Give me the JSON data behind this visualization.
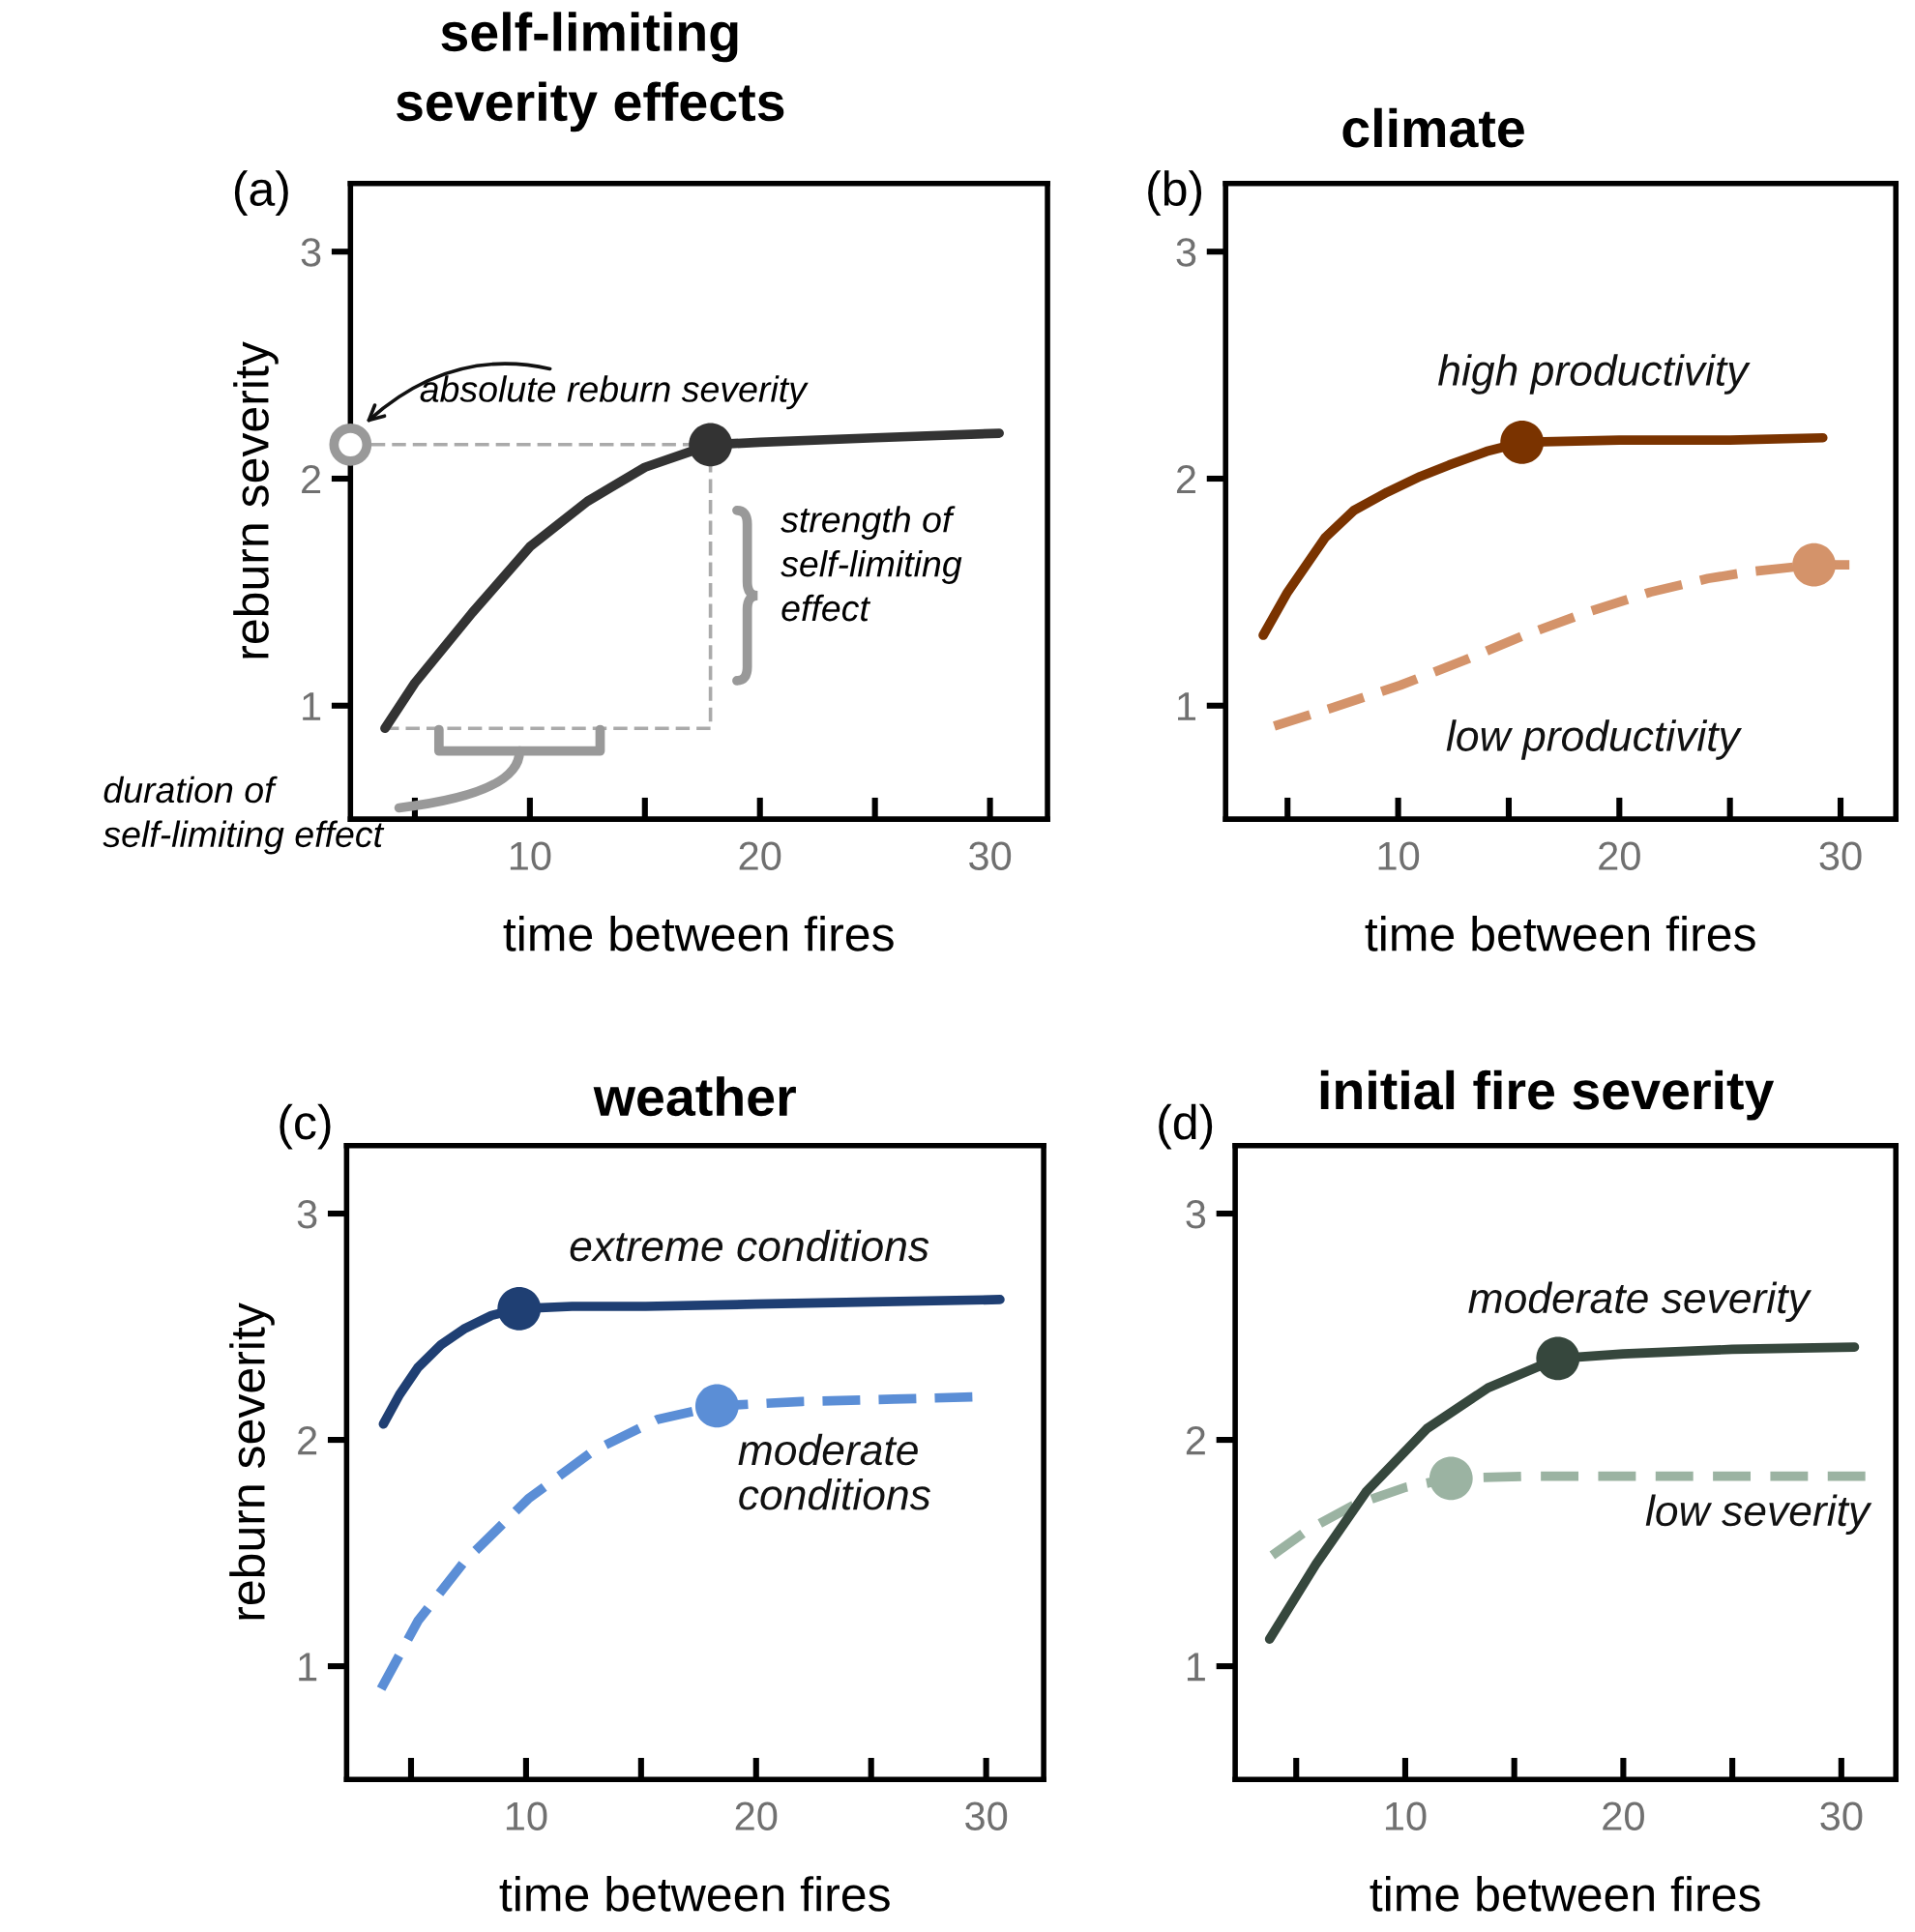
{
  "chart_data": [
    {
      "type": "line",
      "title": "self-limiting\nseverity effects",
      "xlabel": "time between fires",
      "ylabel": "reburn severity",
      "xlim": [
        2.2,
        32.5
      ],
      "ylim": [
        0.5,
        3.3
      ],
      "xticks": [
        {
          "value": 5,
          "label": null
        },
        10,
        {
          "value": 15,
          "label": null
        },
        20,
        {
          "value": 25,
          "label": null
        },
        30
      ],
      "yticks": [
        1,
        2,
        3
      ],
      "series": [
        {
          "type": "line",
          "color": "#aaaaaa",
          "line_style": "dashed",
          "x": [
            2.2,
            17.85,
            17.85,
            3.7
          ],
          "values": [
            2.15,
            2.15,
            0.9,
            0.9
          ]
        },
        {
          "type": "line",
          "color": "#333333",
          "line_style": "solid",
          "x": [
            3.7,
            5,
            7.5,
            10,
            12.5,
            15,
            17.85,
            20,
            25,
            30.4
          ],
          "values": [
            0.9,
            1.1,
            1.41,
            1.7,
            1.9,
            2.05,
            2.15,
            2.16,
            2.18,
            2.2
          ]
        },
        {
          "type": "scatter",
          "marker": "circle",
          "color": "#333333",
          "x": [
            17.85
          ],
          "values": [
            2.15
          ]
        },
        {
          "type": "scatter",
          "marker": "circle",
          "color": "#999999",
          "x": [
            2.2
          ],
          "values": [
            2.15
          ]
        }
      ],
      "annotations": [
        "(a)",
        {
          "text": "absolute reburn severity",
          "x": 2.2,
          "y": 2.15
        },
        "strength of\nself-limiting\neffect",
        "duration of\nself-limiting effect"
      ]
    },
    {
      "type": "line",
      "title": "climate",
      "xlabel": "time between fires",
      "xlim": [
        2.2,
        32.5
      ],
      "ylim": [
        0.5,
        3.3
      ],
      "xticks": [
        {
          "value": 5,
          "label": null
        },
        10,
        {
          "value": 15,
          "label": null
        },
        20,
        {
          "value": 25,
          "label": null
        },
        30
      ],
      "yticks": [
        1,
        2,
        3
      ],
      "series": [
        {
          "type": "line",
          "name": "high productivity",
          "color": "#7a3300",
          "line_style": "solid",
          "x": [
            3.9,
            5,
            6.7,
            8,
            9.5,
            11,
            12.3,
            14,
            15.6,
            20,
            25,
            29.2
          ],
          "values": [
            1.31,
            1.5,
            1.74,
            1.86,
            1.94,
            2.01,
            2.06,
            2.12,
            2.16,
            2.17,
            2.17,
            2.18
          ]
        },
        {
          "type": "scatter",
          "marker": "circle",
          "color": "#7a3300",
          "x": [
            15.6
          ],
          "values": [
            2.16
          ]
        },
        {
          "type": "line",
          "name": "low productivity",
          "color": "#d4936a",
          "line_style": "dashed",
          "x": [
            4.4,
            7,
            10.1,
            13,
            15.7,
            18.5,
            21.4,
            24,
            25.9,
            28.8,
            30.4
          ],
          "values": [
            0.91,
            0.99,
            1.09,
            1.2,
            1.31,
            1.41,
            1.5,
            1.56,
            1.59,
            1.62,
            1.62
          ]
        },
        {
          "type": "scatter",
          "marker": "circle",
          "color": "#d4936a",
          "x": [
            28.8
          ],
          "values": [
            1.62
          ]
        }
      ],
      "annotations": [
        "(b)"
      ]
    },
    {
      "type": "line",
      "title": "weather",
      "xlabel": "time between fires",
      "ylabel": "reburn severity",
      "xlim": [
        2.2,
        32.5
      ],
      "ylim": [
        0.5,
        3.3
      ],
      "xticks": [
        {
          "value": 5,
          "label": null
        },
        10,
        {
          "value": 15,
          "label": null
        },
        20,
        {
          "value": 25,
          "label": null
        },
        30
      ],
      "yticks": [
        1,
        2,
        3
      ],
      "series": [
        {
          "type": "line",
          "name": "extreme conditions",
          "color": "#1f3f73",
          "line_style": "solid",
          "x": [
            3.8,
            4.5,
            5.3,
            6.3,
            7.3,
            8.5,
            9.7,
            12,
            15.2,
            20,
            25,
            30.6
          ],
          "values": [
            2.07,
            2.2,
            2.32,
            2.42,
            2.49,
            2.55,
            2.58,
            2.59,
            2.59,
            2.6,
            2.61,
            2.62
          ]
        },
        {
          "type": "scatter",
          "marker": "circle",
          "color": "#1f3f73",
          "x": [
            9.7
          ],
          "values": [
            2.58
          ]
        },
        {
          "type": "line",
          "name": "moderate\nconditions",
          "color": "#5b8ed6",
          "line_style": "dashed",
          "x": [
            3.7,
            5.3,
            7.3,
            10.1,
            12.9,
            15.7,
            18.3,
            22,
            26,
            29.4
          ],
          "values": [
            0.9,
            1.2,
            1.46,
            1.74,
            1.95,
            2.09,
            2.15,
            2.17,
            2.18,
            2.19
          ]
        },
        {
          "type": "scatter",
          "marker": "circle",
          "color": "#5b8ed6",
          "x": [
            18.3
          ],
          "values": [
            2.15
          ]
        }
      ],
      "annotations": [
        "(c)"
      ]
    },
    {
      "type": "line",
      "title": "initial fire severity",
      "xlabel": "time between fires",
      "xlim": [
        2.2,
        32.5
      ],
      "ylim": [
        0.5,
        3.3
      ],
      "xticks": [
        {
          "value": 5,
          "label": null
        },
        10,
        {
          "value": 15,
          "label": null
        },
        20,
        {
          "value": 25,
          "label": null
        },
        30
      ],
      "yticks": [
        1,
        2,
        3
      ],
      "series": [
        {
          "type": "line",
          "name": "low severity",
          "color": "#9bb3a2",
          "line_style": "dashed",
          "x": [
            3.9,
            5.5,
            7.6,
            10,
            12.1,
            16,
            20,
            25,
            31.1
          ],
          "values": [
            1.49,
            1.6,
            1.71,
            1.79,
            1.83,
            1.84,
            1.84,
            1.84,
            1.84
          ]
        },
        {
          "type": "scatter",
          "marker": "circle",
          "color": "#9bb3a2",
          "x": [
            12.1
          ],
          "values": [
            1.83
          ]
        },
        {
          "type": "line",
          "name": "moderate severity",
          "color": "#36473d",
          "line_style": "solid",
          "x": [
            3.78,
            5.9,
            8.2,
            11,
            13.8,
            17,
            20,
            25,
            30.6
          ],
          "values": [
            1.12,
            1.45,
            1.77,
            2.05,
            2.23,
            2.36,
            2.38,
            2.4,
            2.41
          ]
        },
        {
          "type": "scatter",
          "marker": "circle",
          "color": "#36473d",
          "x": [
            17
          ],
          "values": [
            2.36
          ]
        }
      ],
      "annotations": [
        "(d)"
      ]
    }
  ]
}
